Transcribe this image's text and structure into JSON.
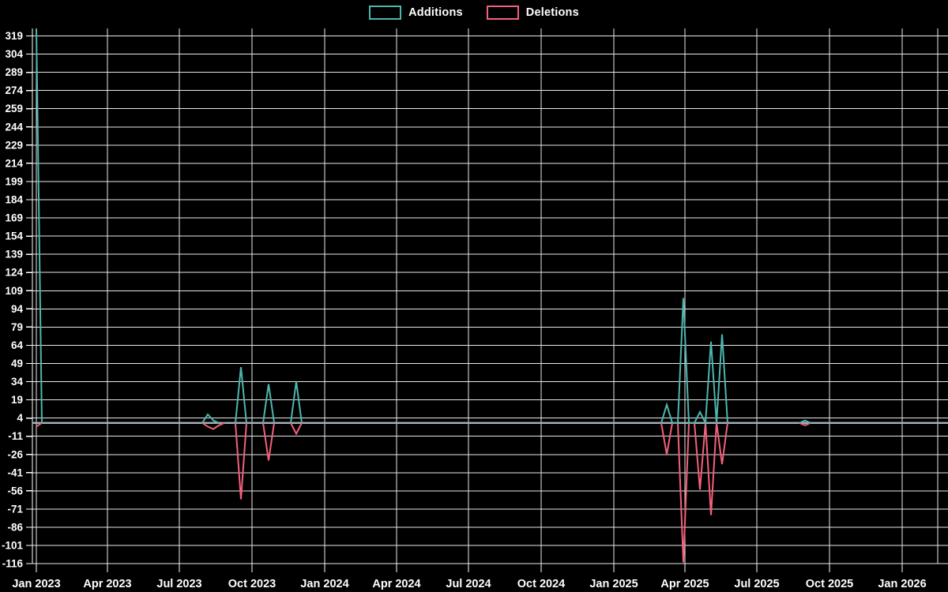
{
  "legend": {
    "items": [
      {
        "label": "Additions",
        "color": "#4DB7AE"
      },
      {
        "label": "Deletions",
        "color": "#F5607B"
      }
    ]
  },
  "chart_data": {
    "type": "line",
    "title": "",
    "xlabel": "",
    "ylabel": "",
    "background_color": "#000000",
    "grid_color": "#E8E8E8",
    "axis_color": "#FFFFFF",
    "text_color": "#FFFFFF",
    "zero_line_color": "#9FB5BF",
    "legend_position": "top-center",
    "grid": true,
    "y_axis": {
      "ticks": [
        319,
        304,
        289,
        274,
        259,
        244,
        229,
        214,
        199,
        184,
        169,
        154,
        139,
        124,
        109,
        94,
        79,
        64,
        49,
        34,
        19,
        4,
        -11,
        -26,
        -41,
        -56,
        -71,
        -86,
        -101,
        -116
      ],
      "data_max": 325,
      "data_min": -115
    },
    "x_axis": {
      "ticks": [
        {
          "date": "2023-01-01",
          "label": "Jan 2023"
        },
        {
          "date": "2023-04-01",
          "label": "Apr 2023"
        },
        {
          "date": "2023-07-01",
          "label": "Jul 2023"
        },
        {
          "date": "2023-10-01",
          "label": "Oct 2023"
        },
        {
          "date": "2024-01-01",
          "label": "Jan 2024"
        },
        {
          "date": "2024-04-01",
          "label": "Apr 2024"
        },
        {
          "date": "2024-07-01",
          "label": "Jul 2024"
        },
        {
          "date": "2024-10-01",
          "label": "Oct 2024"
        },
        {
          "date": "2025-01-01",
          "label": "Jan 2025"
        },
        {
          "date": "2025-04-01",
          "label": "Apr 2025"
        },
        {
          "date": "2025-07-01",
          "label": "Jul 2025"
        },
        {
          "date": "2025-10-01",
          "label": "Oct 2025"
        },
        {
          "date": "2026-01-01",
          "label": "Jan 2026"
        }
      ],
      "extra_gridline_date": "2026-02-15"
    },
    "series": [
      {
        "name": "Additions",
        "color": "#4DB7AE"
      },
      {
        "name": "Deletions",
        "color": "#F5607B"
      }
    ],
    "weekly_range": {
      "start": "2023-01-01",
      "end": "2026-02-22",
      "step_days": 7,
      "default_value": 0
    },
    "events": [
      {
        "week": "2023-01-01",
        "additions": 325,
        "deletions": -3
      },
      {
        "week": "2023-08-06",
        "additions": 7,
        "deletions": -3
      },
      {
        "week": "2023-08-13",
        "additions": 2,
        "deletions": -5
      },
      {
        "week": "2023-08-20",
        "additions": 0,
        "deletions": -2
      },
      {
        "week": "2023-09-17",
        "additions": 46,
        "deletions": -63
      },
      {
        "week": "2023-10-22",
        "additions": 32,
        "deletions": -31
      },
      {
        "week": "2023-11-26",
        "additions": 34,
        "deletions": -9
      },
      {
        "week": "2025-03-09",
        "additions": 15,
        "deletions": -26
      },
      {
        "week": "2025-03-30",
        "additions": 103,
        "deletions": -115
      },
      {
        "week": "2025-04-20",
        "additions": 9,
        "deletions": -55
      },
      {
        "week": "2025-05-04",
        "additions": 67,
        "deletions": -76
      },
      {
        "week": "2025-05-18",
        "additions": 73,
        "deletions": -34
      },
      {
        "week": "2025-08-31",
        "additions": 2,
        "deletions": -2
      }
    ]
  }
}
